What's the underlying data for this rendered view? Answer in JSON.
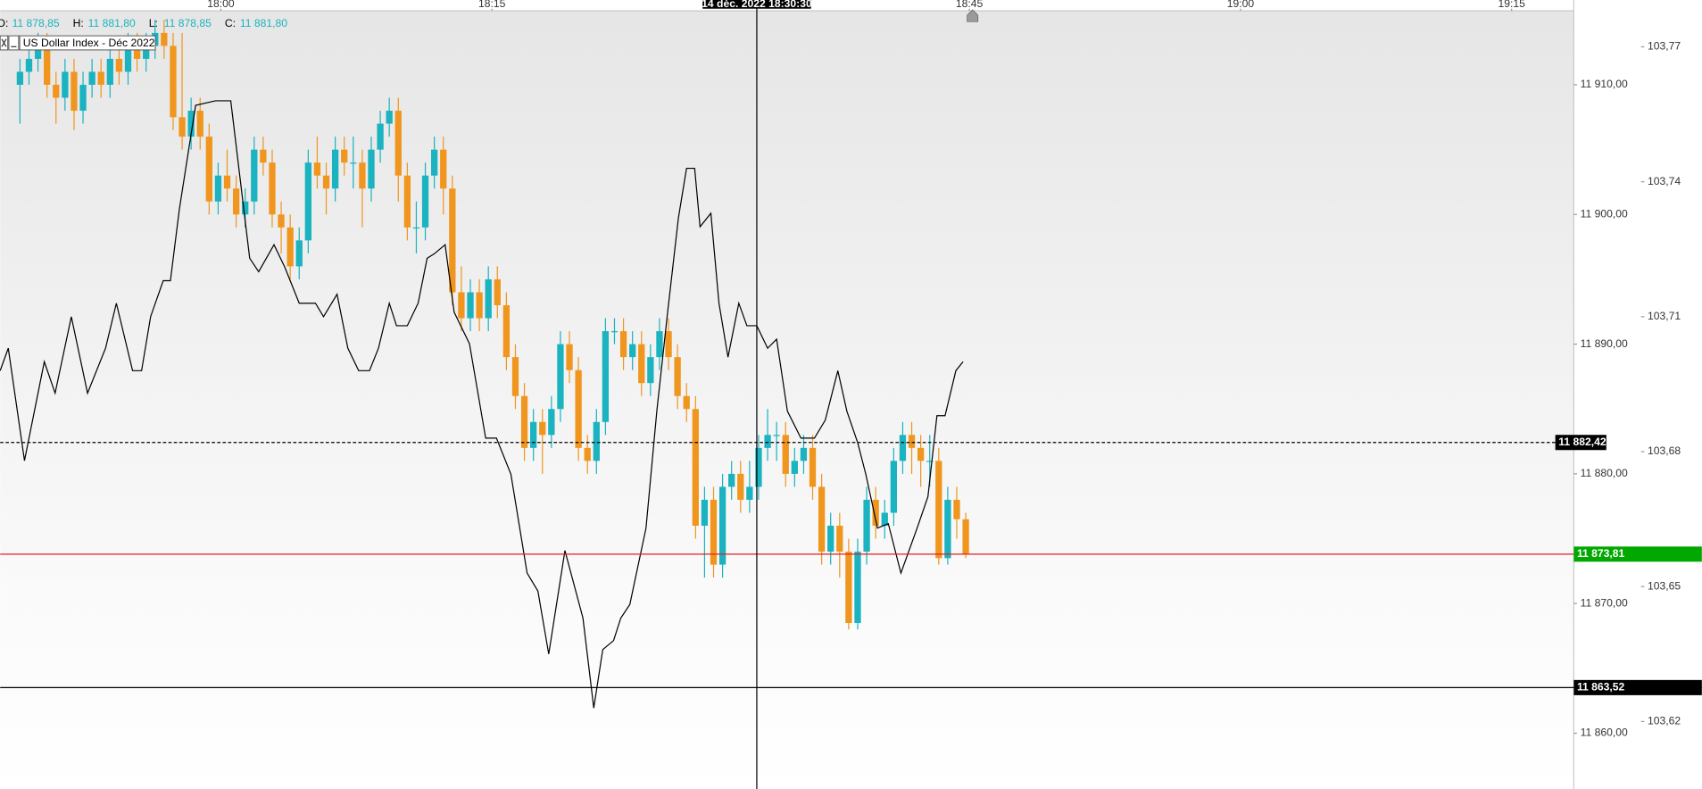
{
  "chart_data": {
    "type": "candlestick",
    "header": {
      "open_label": "O:",
      "open": "11 878,85",
      "high_label": "H:",
      "high": "11 881,80",
      "low_label": "L:",
      "low": "11 878,85",
      "close_label": "C:",
      "close": "11 881,80"
    },
    "up_color": "#1ab3bf",
    "down_color": "#f0961e",
    "open": [
      11910,
      11911,
      11912,
      11913,
      11910,
      11909,
      11911,
      11908,
      11910,
      11911,
      11910,
      11912,
      11911,
      11913,
      11912,
      11913,
      11914,
      11913,
      11907.5,
      11906,
      11908,
      11906,
      11901,
      11903,
      11902,
      11900,
      11901,
      11905,
      11904,
      11900,
      11899,
      11896,
      11898,
      11904,
      11903,
      11902,
      11905,
      11904,
      11904,
      11902,
      11905,
      11907,
      11908,
      11903,
      11899,
      11899,
      11903,
      11905,
      11902,
      11894,
      11892,
      11894,
      11892,
      11895,
      11893,
      11889,
      11886,
      11882,
      11884,
      11883,
      11885,
      11890,
      11888,
      11882,
      11881,
      11884,
      11891,
      11891,
      11889,
      11890,
      11887,
      11889,
      11891,
      11889,
      11886,
      11885,
      11876,
      11878,
      11873,
      11879,
      11880,
      11878,
      11879,
      11882,
      11883,
      11883,
      11880,
      11881,
      11882,
      11879,
      11874,
      11876,
      11874,
      11868.5,
      11874,
      11878,
      11876,
      11877,
      11881,
      11883,
      11882,
      11881,
      11881,
      11873.5,
      11878,
      11876.5
    ],
    "high": [
      11912,
      11913,
      11914,
      11914,
      11911,
      11912,
      11912,
      11911,
      11912,
      11912,
      11913,
      11913,
      11914,
      11914,
      11914,
      11915,
      11915,
      11914,
      11914,
      11909,
      11909,
      11907,
      11904,
      11905,
      11903,
      11902,
      11906,
      11906,
      11905,
      11901,
      11900,
      11899,
      11905,
      11906,
      11904,
      11906,
      11906,
      11906,
      11905,
      11906,
      11908,
      11909,
      11909,
      11904,
      11901,
      11904,
      11906,
      11906,
      11903,
      11896,
      11895,
      11895,
      11896,
      11896,
      11894,
      11890,
      11887,
      11885,
      11885,
      11886,
      11891,
      11891,
      11889,
      11883,
      11885,
      11892,
      11892,
      11892,
      11891,
      11891,
      11890,
      11892,
      11892,
      11890,
      11887,
      11886,
      11879,
      11879,
      11880,
      11881,
      11881,
      11881,
      11883,
      11885,
      11884,
      11884,
      11882,
      11883,
      11883,
      11880,
      11877,
      11877,
      11875,
      11875,
      11879,
      11879,
      11878,
      11882,
      11884,
      11884,
      11883,
      11883,
      11882,
      11879,
      11879,
      11877
    ],
    "low": [
      11907,
      11910,
      11911,
      11909,
      11907,
      11908,
      11906.5,
      11907,
      11909,
      11909,
      11909,
      11910,
      11910,
      11911,
      11911,
      11912,
      11912,
      11906.5,
      11905,
      11905,
      11905,
      11900,
      11900,
      11901,
      11899,
      11899,
      11900,
      11903,
      11899,
      11897,
      11895,
      11895,
      11897,
      11902,
      11900,
      11901,
      11903,
      11902,
      11899,
      11901,
      11904,
      11906,
      11901,
      11898,
      11897,
      11898,
      11902,
      11900,
      11893,
      11891,
      11891,
      11891,
      11891,
      11892,
      11888,
      11885,
      11881,
      11881,
      11880,
      11882,
      11884,
      11887,
      11881,
      11880,
      11880,
      11883,
      11890,
      11888,
      11888,
      11886,
      11886,
      11888,
      11888,
      11885,
      11884,
      11875,
      11872,
      11872,
      11872,
      11878,
      11877,
      11877,
      11878,
      11881,
      11881,
      11879,
      11879,
      11880,
      11878,
      11873,
      11873,
      11872,
      11868,
      11868,
      11873,
      11875,
      11875,
      11876,
      11880,
      11880,
      11879,
      11879,
      11873,
      11873,
      11875,
      11873.5
    ],
    "close": [
      11911,
      11912,
      11913,
      11910,
      11909,
      11911,
      11908,
      11910,
      11911,
      11910,
      11912,
      11911,
      11913,
      11912,
      11913,
      11914,
      11913,
      11907.5,
      11906,
      11908,
      11906,
      11901,
      11903,
      11902,
      11900,
      11901,
      11905,
      11904,
      11900,
      11899,
      11896,
      11898,
      11904,
      11903,
      11902,
      11905,
      11904,
      11904,
      11902,
      11905,
      11907,
      11908,
      11903,
      11899,
      11899,
      11903,
      11905,
      11902,
      11894,
      11892,
      11894,
      11892,
      11895,
      11893,
      11889,
      11886,
      11882,
      11884,
      11883,
      11885,
      11890,
      11888,
      11882,
      11881,
      11884,
      11891,
      11891,
      11889,
      11890,
      11887,
      11889,
      11891,
      11889,
      11886,
      11885,
      11876,
      11878,
      11873,
      11879,
      11880,
      11878,
      11879,
      11882,
      11883,
      11883,
      11880,
      11881,
      11882,
      11879,
      11874,
      11876,
      11874,
      11868.5,
      11874,
      11878,
      11876,
      11877,
      11881,
      11883,
      11882,
      11881,
      11881,
      11873.5,
      11878,
      11876.5,
      11873.81
    ],
    "series": [
      {
        "name": "US Dollar Index - Déc 2022",
        "color": "#000000",
        "axis": "y2",
        "x": [
          -2.2,
          -1.3,
          0.5,
          2.7,
          3.9,
          5.7,
          7.5,
          9.5,
          10.7,
          12.5,
          13.5,
          14.5,
          15.9,
          16.7,
          17.7,
          19.5,
          21.7,
          23.4,
          25.5,
          26.5,
          28.2,
          29.4,
          31.0,
          32.8,
          33.7,
          35.2,
          36.4,
          37.6,
          38.8,
          39.8,
          41.0,
          41.8,
          43.0,
          44.2,
          45.2,
          46.0,
          47.2,
          48.2,
          49.9,
          51.7,
          52.9,
          54.5,
          56.3,
          57.5,
          58.7,
          60.5,
          61.7,
          62.5,
          63.7,
          64.7,
          65.9,
          66.7,
          67.7,
          69.5,
          70.7,
          71.9,
          73.1,
          74.0,
          74.9,
          75.5,
          76.7,
          77.6,
          78.6,
          79.8,
          80.7,
          81.8,
          83.0,
          84.0,
          85.2,
          86.7,
          88.2,
          89.4,
          90.8,
          91.8,
          93.0,
          93.9,
          95.2,
          96.4,
          97.8,
          99.6,
          100.8,
          101.8,
          102.7,
          103.9,
          104.7
        ],
        "values": [
          103.698,
          103.703,
          103.678,
          103.7,
          103.693,
          103.71,
          103.693,
          103.703,
          103.713,
          103.698,
          103.698,
          103.71,
          103.718,
          103.718,
          103.734,
          103.757,
          103.758,
          103.758,
          103.723,
          103.72,
          103.726,
          103.721,
          103.713,
          103.713,
          103.71,
          103.715,
          103.703,
          103.698,
          103.698,
          103.703,
          103.713,
          103.708,
          103.708,
          103.713,
          103.723,
          103.724,
          103.726,
          103.711,
          103.704,
          103.683,
          103.683,
          103.675,
          103.653,
          103.649,
          103.635,
          103.658,
          103.649,
          103.643,
          103.623,
          103.636,
          103.638,
          103.643,
          103.646,
          103.663,
          103.689,
          103.711,
          103.732,
          103.743,
          103.743,
          103.73,
          103.733,
          103.713,
          103.701,
          103.713,
          103.708,
          103.708,
          103.703,
          103.705,
          103.689,
          103.683,
          103.683,
          103.687,
          103.698,
          103.689,
          103.682,
          103.675,
          103.663,
          103.664,
          103.653,
          103.663,
          103.67,
          103.688,
          103.688,
          103.698,
          103.7
        ]
      }
    ],
    "xlim": [
      -2.2,
      172.5
    ],
    "xticks": [
      {
        "value": 22.3,
        "label": "18:00"
      },
      {
        "value": 52.4,
        "label": "18:15"
      },
      {
        "value": 105.4,
        "label": "18:45"
      },
      {
        "value": 135.5,
        "label": "19:00"
      },
      {
        "value": 165.6,
        "label": "19:15"
      }
    ],
    "ylim": [
      11855.7,
      11915.7
    ],
    "yticks": [
      {
        "value": 11860,
        "label": "11 860,00"
      },
      {
        "value": 11870,
        "label": "11 870,00"
      },
      {
        "value": 11880,
        "label": "11 880,00"
      },
      {
        "value": 11890,
        "label": "11 890,00"
      },
      {
        "value": 11900,
        "label": "11 900,00"
      },
      {
        "value": 11910,
        "label": "11 910,00"
      }
    ],
    "y2lim": [
      103.605,
      103.778
    ],
    "y2ticks": [
      {
        "value": 103.62,
        "label": "103,62"
      },
      {
        "value": 103.65,
        "label": "103,65"
      },
      {
        "value": 103.68,
        "label": "103,68"
      },
      {
        "value": 103.71,
        "label": "103,71"
      },
      {
        "value": 103.74,
        "label": "103,74"
      },
      {
        "value": 103.77,
        "label": "103,77"
      }
    ],
    "price_lines": [
      {
        "value": 11882.42,
        "label": "11 882,42",
        "color": "#000000",
        "label_color": "#000000",
        "style": "dashed"
      },
      {
        "value": 11873.81,
        "label": "11 873,81",
        "color": "#e02020",
        "label_color": "#00a800",
        "style": "solid"
      },
      {
        "value": 11863.52,
        "label": "11 863,52",
        "color": "#000000",
        "label_color": "#000000",
        "style": "solid"
      }
    ],
    "crosshair": {
      "x": 81.8,
      "label": "14 déc. 2022 18:30:30"
    }
  }
}
